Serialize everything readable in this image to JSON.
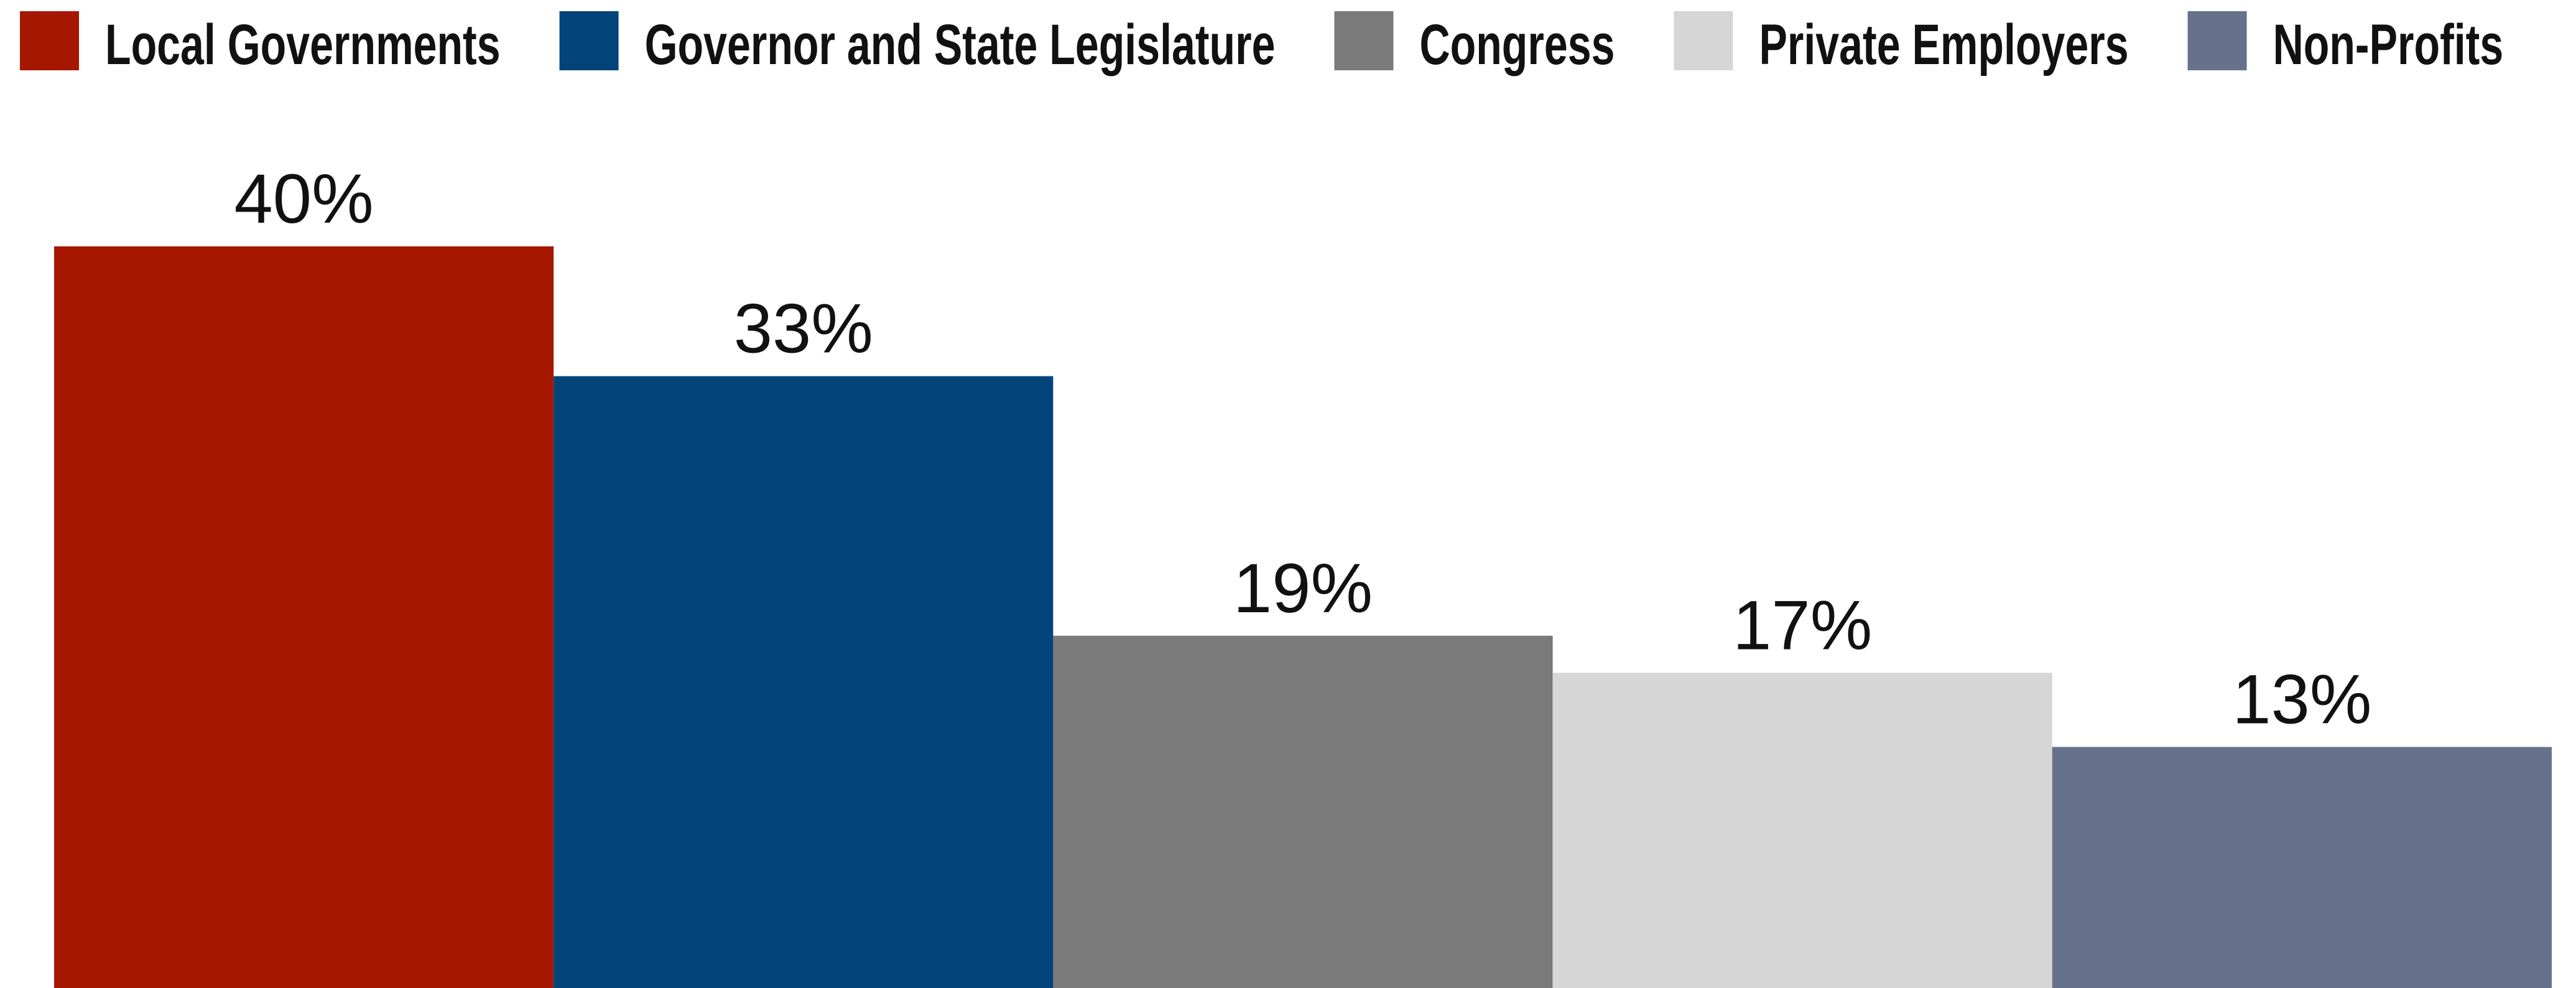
{
  "chart_data": {
    "type": "bar",
    "categories": [
      "Local Governments",
      "Governor and State Legislature",
      "Congress",
      "Private Employers",
      "Non-Profits"
    ],
    "values": [
      40,
      33,
      19,
      17,
      13
    ],
    "value_labels": [
      "40%",
      "33%",
      "19%",
      "17%",
      "13%"
    ],
    "colors": [
      "#a61700",
      "#02447a",
      "#7a7a7a",
      "#d6d6d6",
      "#66728c"
    ]
  }
}
